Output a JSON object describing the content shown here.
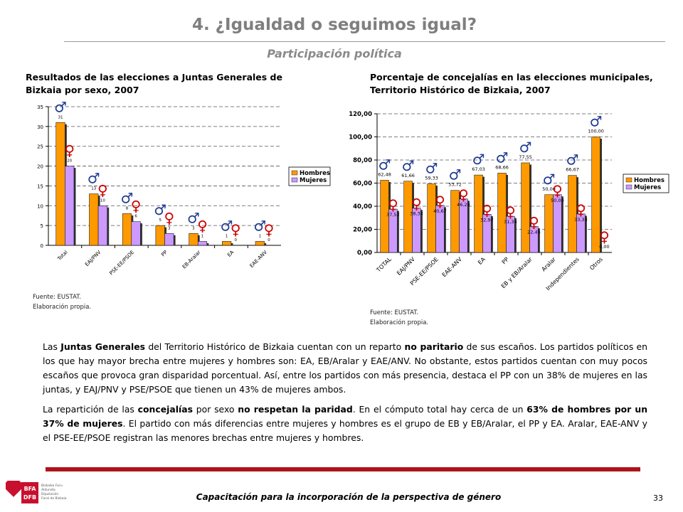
{
  "header": {
    "title": "4. ¿Igualdad o seguimos igual?",
    "subtitle": "Participación política"
  },
  "chart_left": {
    "title_line1": "Resultados de las elecciones a Juntas Generales de",
    "title_line2": "Bizkaia por sexo, 2007",
    "source_line1": "Fuente: EUSTAT.",
    "source_line2": "Elaboración propia."
  },
  "chart_right": {
    "title_line1": "Porcentaje de concejalías en las elecciones municipales,",
    "title_line2": "Territorio Histórico de Bizkaia, 2007",
    "source_line1": "Fuente: EUSTAT.",
    "source_line2": "Elaboración propia."
  },
  "chart_data": [
    {
      "type": "bar",
      "categories": [
        "Total",
        "EAJ/PNV",
        "PSE-EE/PSOE",
        "PP",
        "EB-Aralar",
        "EA",
        "EAE-ANV"
      ],
      "series": [
        {
          "name": "Hombres",
          "values": [
            31,
            13,
            8,
            5,
            3,
            1,
            1
          ],
          "color": "#ff9900",
          "symbol": "♂"
        },
        {
          "name": "Mujeres",
          "values": [
            20,
            10,
            6,
            3,
            1,
            0,
            0
          ],
          "color": "#cc99ff",
          "symbol": "♀"
        }
      ],
      "ylim": [
        0,
        35
      ],
      "yticks": [
        "0",
        "5",
        "10",
        "15",
        "20",
        "25",
        "30",
        "35"
      ],
      "value_labels": [
        [
          "31",
          "13",
          "8",
          "5",
          "3",
          "1",
          "1"
        ],
        [
          "20",
          "10",
          "6",
          "3",
          "1",
          "0",
          "0"
        ]
      ],
      "grid": true,
      "legend": "right"
    },
    {
      "type": "bar",
      "categories": [
        "TOTAL",
        "EAJ/PNV",
        "PSE-EE/PSOE",
        "EAE-ANV",
        "EA",
        "PP",
        "EB y EB/Aralar",
        "Aralar",
        "Independientes",
        "Otros"
      ],
      "series": [
        {
          "name": "Hombres",
          "values": [
            62.48,
            61.66,
            59.33,
            53.72,
            67.03,
            68.66,
            77.55,
            50.0,
            66.67,
            100.0
          ],
          "color": "#ff9900",
          "symbol": "♂"
        },
        {
          "name": "Mujeres",
          "values": [
            37.52,
            38.34,
            40.67,
            46.28,
            32.97,
            31.34,
            22.45,
            50.0,
            33.33,
            0.0
          ],
          "color": "#cc99ff",
          "symbol": "♀"
        }
      ],
      "ylim": [
        0,
        120
      ],
      "yticks": [
        "0,00",
        "20,00",
        "40,00",
        "60,00",
        "80,00",
        "100,00",
        "120,00"
      ],
      "value_labels": [
        [
          "62,48",
          "61,66",
          "59,33",
          "53,72",
          "67,03",
          "68,66",
          "77,55",
          "50,00",
          "66,67",
          "100,00"
        ],
        [
          "37,52",
          "38,34",
          "40,67",
          "46,28",
          "32,97",
          "31,34",
          "22,45",
          "50,00",
          "33,33",
          "0,00"
        ]
      ],
      "grid": true,
      "legend": "right"
    }
  ],
  "body": {
    "p1_a": "Las ",
    "p1_b": "Juntas Generales",
    "p1_c": " del Territorio Histórico de Bizkaia cuentan con un reparto ",
    "p1_d": "no paritario",
    "p1_e": " de sus escaños. Los partidos políticos en los que hay mayor brecha entre mujeres y hombres son: EA, EB/Aralar y EAE/ANV. No obstante, estos partidos cuentan con muy pocos escaños que provoca gran disparidad porcentual. Así, entre los partidos con más presencia, destaca el PP con un 38% de mujeres en las juntas, y EAJ/PNV y PSE/PSOE que tienen un 43% de mujeres ambos.",
    "p2_a": "La repartición de las ",
    "p2_b": "concejalías",
    "p2_c": " por sexo ",
    "p2_d": "no respetan la paridad",
    "p2_e": ". En el cómputo total hay cerca de un ",
    "p2_f": "63% de hombres por un 37% de mujeres",
    "p2_g": ". El partido con más diferencias entre mujeres y hombres es el grupo de EB y EB/Aralar, el PP y EA. Aralar, EAE-ANV y el PSE-EE/PSOE registran las menores brechas entre mujeres y hombres."
  },
  "footer": {
    "text": "Capacitación para la incorporación de la perspectiva de género",
    "page": "33"
  },
  "logo": {
    "mark_top": "BFA",
    "mark_bottom": "DFB",
    "line1": "Bizkaiko Foru",
    "line2": "Aldundia",
    "line3": "Diputación",
    "line4": "Foral de Bizkaia"
  },
  "colors": {
    "hombres": "#ff9900",
    "mujeres": "#cc99ff",
    "male_symbol": "#1f3a93",
    "female_symbol": "#cc0000",
    "brand_red": "#b0121b"
  }
}
